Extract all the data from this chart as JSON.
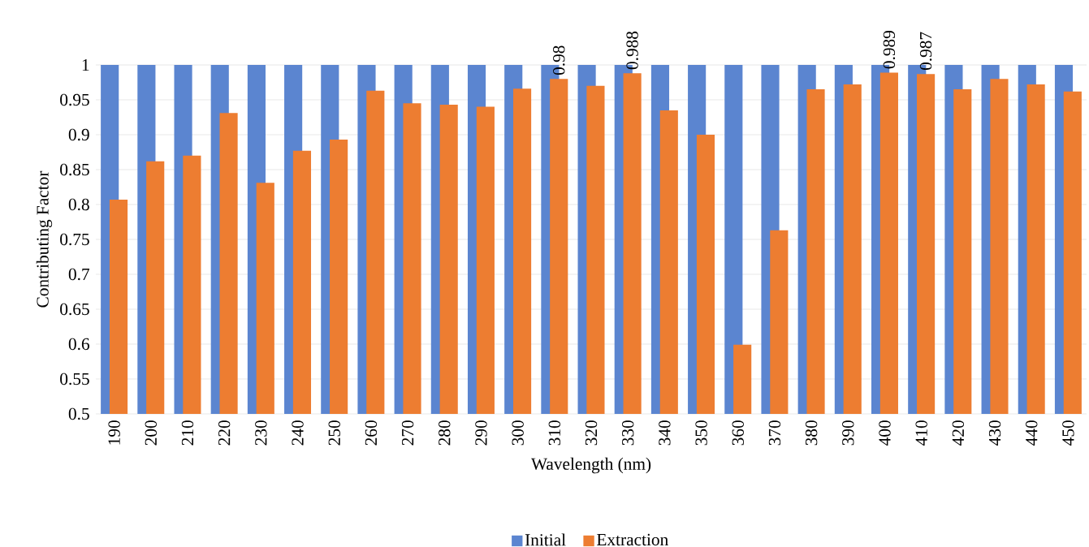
{
  "chart_data": {
    "type": "bar",
    "xlabel": "Wavelength (nm)",
    "ylabel": "Contributing Factor",
    "categories": [
      "190",
      "200",
      "210",
      "220",
      "230",
      "240",
      "250",
      "260",
      "270",
      "280",
      "290",
      "300",
      "310",
      "320",
      "330",
      "340",
      "350",
      "360",
      "370",
      "380",
      "390",
      "400",
      "410",
      "420",
      "430",
      "440",
      "450"
    ],
    "series": [
      {
        "name": "Initial",
        "color": "#5b85d0",
        "values": [
          1,
          1,
          1,
          1,
          1,
          1,
          1,
          1,
          1,
          1,
          1,
          1,
          1,
          1,
          1,
          1,
          1,
          1,
          1,
          1,
          1,
          1,
          1,
          1,
          1,
          1,
          1
        ]
      },
      {
        "name": "Extraction",
        "color": "#ed7d31",
        "values": [
          0.807,
          0.862,
          0.87,
          0.931,
          0.831,
          0.877,
          0.893,
          0.963,
          0.945,
          0.943,
          0.94,
          0.966,
          0.98,
          0.97,
          0.988,
          0.935,
          0.9,
          0.599,
          0.763,
          0.965,
          0.972,
          0.989,
          0.987,
          0.965,
          0.98,
          0.972,
          0.962
        ],
        "value_labels": [
          null,
          null,
          null,
          null,
          null,
          null,
          null,
          null,
          null,
          null,
          null,
          null,
          "0.98",
          null,
          "0.988",
          null,
          null,
          null,
          null,
          null,
          null,
          "0.989",
          "0.987",
          null,
          null,
          null,
          null
        ]
      }
    ],
    "ylim": [
      0.5,
      1
    ],
    "yticks": [
      0.5,
      0.55,
      0.6,
      0.65,
      0.7,
      0.75,
      0.8,
      0.85,
      0.9,
      0.95,
      1
    ],
    "grid": "y",
    "legend": "bottom"
  }
}
